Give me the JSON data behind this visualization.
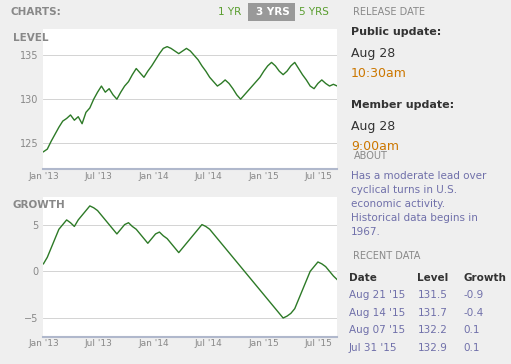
{
  "bg_color": "#efefef",
  "chart_bg": "#ffffff",
  "panel_bg": "#e0e0e0",
  "green_line": "#2d7a27",
  "gray_line": "#cccccc",
  "header_bg": "#e8e8e8",
  "selected_btn_bg": "#999999",
  "selected_btn_fg": "#ffffff",
  "unselected_btn_fg": "#5a9e30",
  "text_dark": "#333333",
  "text_gray": "#888888",
  "text_purple": "#7070aa",
  "text_orange": "#cc7700",
  "charts_label": "CHARTS:",
  "btn_1yr": "1 YR",
  "btn_3yrs": "3 YRS",
  "btn_5yrs": "5 YRS",
  "level_label": "LEVEL",
  "growth_label": "GROWTH",
  "release_date_title": "RELEASE DATE",
  "public_update_label": "Public update:",
  "public_update_date": "Aug 28",
  "public_update_time": "10:30am",
  "member_update_label": "Member update:",
  "member_update_date": "Aug 28",
  "member_update_time": "9:00am",
  "about_title": "ABOUT",
  "about_text": "Has a moderate lead over\ncyclical turns in U.S.\neconomic activity.\nHistorical data begins in\n1967.",
  "recent_data_title": "RECENT DATA",
  "recent_data_headers": [
    "Date",
    "Level",
    "Growth"
  ],
  "recent_data_rows": [
    [
      "Aug 21 '15",
      "131.5",
      "-0.9"
    ],
    [
      "Aug 14 '15",
      "131.7",
      "-0.4"
    ],
    [
      "Aug 07 '15",
      "132.2",
      "0.1"
    ],
    [
      "Jul 31 '15",
      "132.9",
      "0.1"
    ]
  ],
  "level_yticks": [
    125,
    130,
    135
  ],
  "level_ylim": [
    122,
    138
  ],
  "growth_yticks": [
    -5,
    0,
    5
  ],
  "growth_ylim": [
    -7,
    8
  ],
  "xtick_labels": [
    "Jan '13",
    "Jul '13",
    "Jan '14",
    "Jul '14",
    "Jan '15",
    "Jul '15"
  ],
  "level_data": [
    124.0,
    124.3,
    125.2,
    126.0,
    126.8,
    127.5,
    127.8,
    128.2,
    127.6,
    128.0,
    127.2,
    128.5,
    129.0,
    130.0,
    130.8,
    131.5,
    130.8,
    131.2,
    130.5,
    130.0,
    130.8,
    131.5,
    132.0,
    132.8,
    133.5,
    133.0,
    132.5,
    133.2,
    133.8,
    134.5,
    135.2,
    135.8,
    136.0,
    135.8,
    135.5,
    135.2,
    135.5,
    135.8,
    135.5,
    135.0,
    134.5,
    133.8,
    133.2,
    132.5,
    132.0,
    131.5,
    131.8,
    132.2,
    131.8,
    131.2,
    130.5,
    130.0,
    130.5,
    131.0,
    131.5,
    132.0,
    132.5,
    133.2,
    133.8,
    134.2,
    133.8,
    133.2,
    132.8,
    133.2,
    133.8,
    134.2,
    133.5,
    132.8,
    132.2,
    131.5,
    131.2,
    131.8,
    132.2,
    131.8,
    131.5,
    131.7,
    131.5
  ],
  "growth_data": [
    0.8,
    1.5,
    2.5,
    3.5,
    4.5,
    5.0,
    5.5,
    5.2,
    4.8,
    5.5,
    6.0,
    6.5,
    7.0,
    6.8,
    6.5,
    6.0,
    5.5,
    5.0,
    4.5,
    4.0,
    4.5,
    5.0,
    5.2,
    4.8,
    4.5,
    4.0,
    3.5,
    3.0,
    3.5,
    4.0,
    4.2,
    3.8,
    3.5,
    3.0,
    2.5,
    2.0,
    2.5,
    3.0,
    3.5,
    4.0,
    4.5,
    5.0,
    4.8,
    4.5,
    4.0,
    3.5,
    3.0,
    2.5,
    2.0,
    1.5,
    1.0,
    0.5,
    0.0,
    -0.5,
    -1.0,
    -1.5,
    -2.0,
    -2.5,
    -3.0,
    -3.5,
    -4.0,
    -4.5,
    -5.0,
    -4.8,
    -4.5,
    -4.0,
    -3.0,
    -2.0,
    -1.0,
    0.0,
    0.5,
    1.0,
    0.8,
    0.5,
    0.0,
    -0.5,
    -0.9
  ]
}
